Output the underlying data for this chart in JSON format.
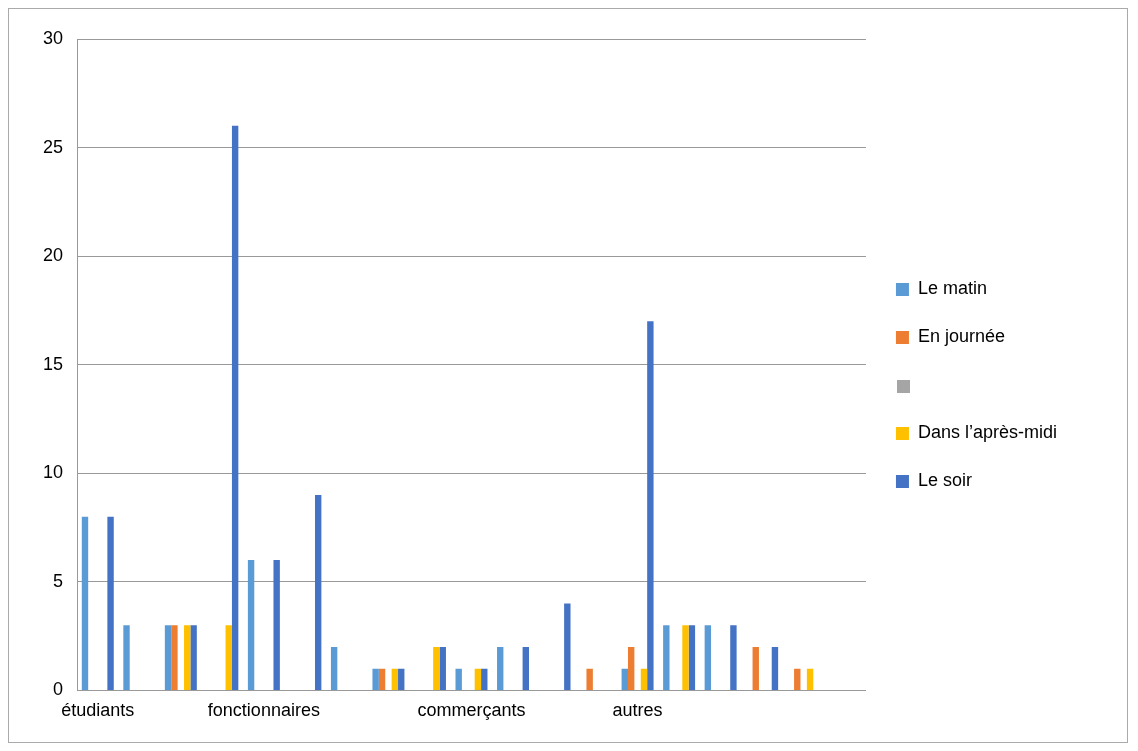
{
  "chart_data": {
    "type": "bar",
    "categories": [
      "étudiants",
      null,
      null,
      null,
      "fonctionnaires",
      null,
      null,
      null,
      null,
      "commerçants",
      null,
      null,
      null,
      "autres",
      null,
      null,
      null,
      null,
      null
    ],
    "series": [
      {
        "name": "Le matin",
        "color": "#5b9bd5",
        "values": [
          8,
          3,
          3,
          null,
          6,
          null,
          2,
          1,
          null,
          1,
          2,
          null,
          null,
          1,
          3,
          3,
          null,
          null,
          null
        ]
      },
      {
        "name": "En journée",
        "color": "#ed7d31",
        "values": [
          null,
          null,
          3,
          null,
          null,
          null,
          null,
          1,
          null,
          null,
          null,
          null,
          1,
          2,
          null,
          null,
          2,
          1,
          null
        ]
      },
      {
        "color": "#a5a5a5",
        "values": [
          null,
          null,
          null,
          null,
          null,
          null,
          null,
          null,
          null,
          null,
          null,
          null,
          null,
          null,
          null,
          null,
          null,
          null,
          null
        ]
      },
      {
        "name": "Dans l’après-midi",
        "color": "#ffc000",
        "values": [
          null,
          null,
          3,
          3,
          null,
          null,
          null,
          1,
          2,
          1,
          null,
          null,
          null,
          1,
          3,
          null,
          null,
          1,
          null
        ]
      },
      {
        "name": "Le soir",
        "color": "#4472c4",
        "values": [
          8,
          null,
          3,
          26,
          6,
          9,
          null,
          1,
          2,
          1,
          2,
          4,
          null,
          17,
          3,
          3,
          2,
          null,
          null
        ]
      }
    ],
    "ylim": [
      0,
      30
    ],
    "yticks": [
      0,
      5,
      10,
      15,
      20,
      25,
      30
    ],
    "grid": "y",
    "legend": "right"
  }
}
